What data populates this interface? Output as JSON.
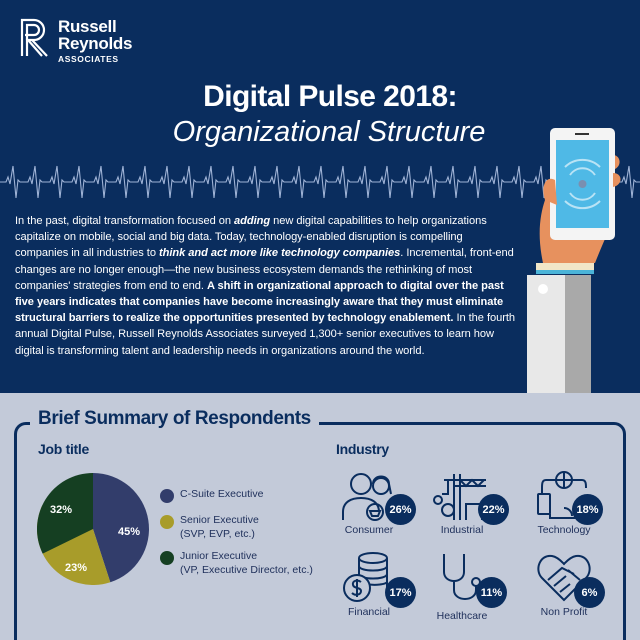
{
  "logo": {
    "line1": "Russell",
    "line2": "Reynolds",
    "line3": "ASSOCIATES"
  },
  "header": {
    "title": "Digital Pulse 2018:",
    "subtitle": "Organizational Structure"
  },
  "intro": {
    "p1": "In the past, digital transformation focused on ",
    "p1_em": "adding",
    "p2": " new digital capabilities to help organizations capitalize on mobile, social and big data. Today, technology-enabled disruption is compelling companies in all industries to ",
    "p2_em": "think and act more like technology companies",
    "p3": ". Incremental, front-end changes are no longer enough—the new business ecosystem demands the rethinking of most companies' strategies from end to end.  ",
    "p3_bold": "A shift in  organizational approach to digital over the past five years indicates that companies have become increasingly aware that they must eliminate structural barriers to realize the opportunities presented by technology enablement.",
    "p4": " In the fourth annual Digital Pulse, Russell Reynolds Associates surveyed 1,300+ senior executives to learn how digital is transforming talent and leadership needs in organizations around the world."
  },
  "summary": {
    "title": "Brief Summary of Respondents",
    "job_title_heading": "Job title",
    "industry_heading": "Industry"
  },
  "colors": {
    "navy": "#0a2d5e",
    "background_light": "#c3cad9",
    "c_suite": "#323d6b",
    "senior": "#a89c2a",
    "junior": "#153f22"
  },
  "chart_data": [
    {
      "type": "pie",
      "title": "Job title",
      "categories": [
        "C-Suite Executive",
        "Senior Executive (SVP, EVP, etc.)",
        "Junior Executive (VP, Executive Director, etc.)"
      ],
      "values": [
        45,
        23,
        32
      ],
      "labels": [
        "45%",
        "23%",
        "32%"
      ],
      "colors": [
        "#323d6b",
        "#a89c2a",
        "#153f22"
      ],
      "legend_position": "right"
    },
    {
      "type": "table",
      "title": "Industry",
      "categories": [
        "Consumer",
        "Industrial",
        "Technology",
        "Financial",
        "Healthcare",
        "Non Profit"
      ],
      "values": [
        26,
        22,
        18,
        17,
        11,
        6
      ],
      "labels": [
        "26%",
        "22%",
        "18%",
        "17%",
        "11%",
        "6%"
      ]
    }
  ],
  "job_title": {
    "slices": [
      {
        "label": "45%"
      },
      {
        "label": "23%"
      },
      {
        "label": "32%"
      }
    ],
    "legend": [
      {
        "line1": "C-Suite Executive",
        "line2": ""
      },
      {
        "line1": "Senior Executive",
        "line2": "(SVP, EVP, etc.)"
      },
      {
        "line1": "Junior Executive",
        "line2": "(VP, Executive Director, etc.)"
      }
    ]
  },
  "industry": [
    {
      "name": "Consumer",
      "pct": "26%",
      "icon": "people-basket-icon"
    },
    {
      "name": "Industrial",
      "pct": "22%",
      "icon": "crane-gear-icon"
    },
    {
      "name": "Technology",
      "pct": "18%",
      "icon": "devices-globe-icon"
    },
    {
      "name": "Financial",
      "pct": "17%",
      "icon": "coins-dollar-icon"
    },
    {
      "name": "Healthcare",
      "pct": "11%",
      "icon": "stethoscope-icon"
    },
    {
      "name": "Non Profit",
      "pct": "6%",
      "icon": "heart-handshake-icon"
    }
  ]
}
